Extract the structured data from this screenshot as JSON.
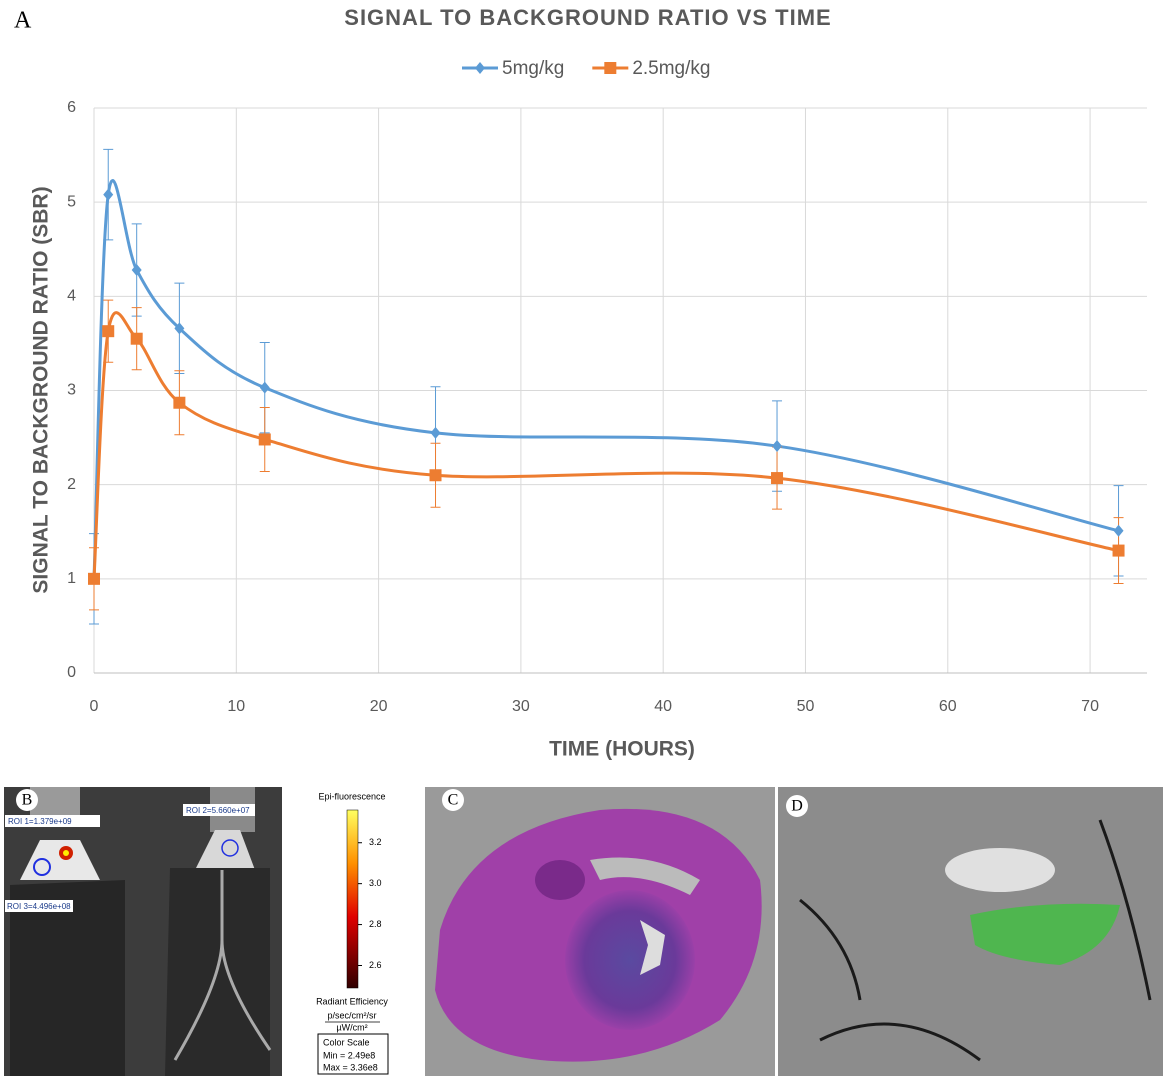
{
  "chart_data": {
    "type": "line",
    "title": "SIGNAL TO BACKGROUND RATIO VS TIME",
    "x_label": "TIME (HOURS)",
    "y_label": "SIGNAL TO BACKGROUND RATIO (SBR)",
    "x": [
      0,
      1,
      3,
      6,
      12,
      24,
      48,
      72
    ],
    "series": [
      {
        "name": "5mg/kg",
        "color": "#5b9bd5",
        "marker": "diamond",
        "values": [
          1,
          5.08,
          4.28,
          3.66,
          3.03,
          2.55,
          2.41,
          1.51
        ],
        "errors": [
          0.48,
          0.48,
          0.49,
          0.48,
          0.48,
          0.49,
          0.48,
          0.48
        ]
      },
      {
        "name": "2.5mg/kg",
        "color": "#ed7d31",
        "marker": "square",
        "values": [
          1,
          3.63,
          3.55,
          2.87,
          2.48,
          2.1,
          2.07,
          1.3
        ],
        "errors": [
          0.33,
          0.33,
          0.33,
          0.34,
          0.34,
          0.34,
          0.33,
          0.35
        ]
      }
    ],
    "xlim": [
      0,
      74
    ],
    "xticks": [
      0,
      10,
      20,
      30,
      40,
      50,
      60,
      70
    ],
    "ylim": [
      0,
      6
    ],
    "yticks": [
      0,
      1,
      2,
      3,
      4,
      5,
      6
    ],
    "grid": true,
    "legend": "top",
    "smooth": true
  },
  "panels": {
    "A": "A",
    "B": "B",
    "C": "C",
    "D": "D"
  },
  "rois": [
    "ROI 1=1.379e+09",
    "ROI 2=5.660e+07",
    "ROI 3=4.496e+08"
  ],
  "colorbar": {
    "title": "Epi-fluorescence",
    "lim": [
      2.49,
      3.36
    ],
    "ticks": [
      3.2,
      3.0,
      2.8,
      2.6
    ],
    "unit_title": "Radiant Efficiency",
    "unit_num": "p/sec/cm²/sr",
    "unit_den": "µW/cm²",
    "scale_title": "Color Scale",
    "min": "Min = 2.49e8",
    "max": "Max = 3.36e8"
  }
}
